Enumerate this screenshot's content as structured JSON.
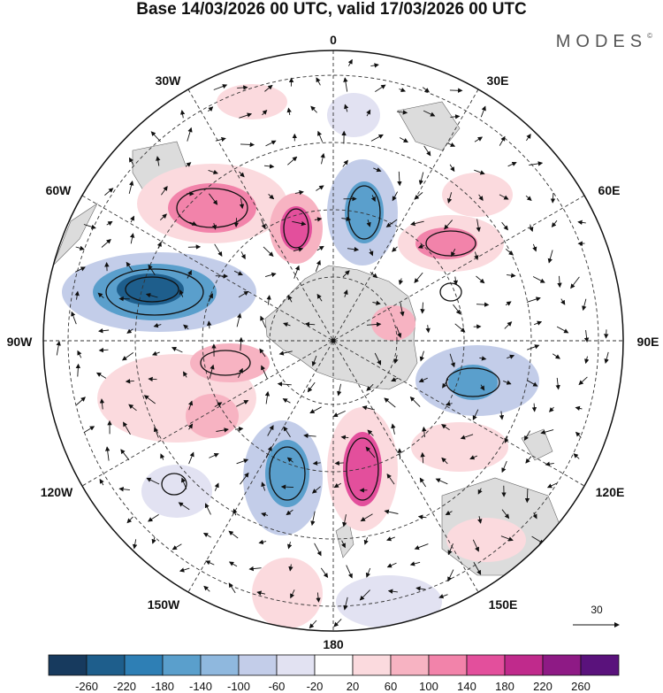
{
  "title": "Base 14/03/2026 00 UTC, valid 17/03/2026 00 UTC",
  "brand": "MODES",
  "brand_mark": "©",
  "longitude_labels": {
    "n0": "0",
    "n30e": "30E",
    "n60e": "60E",
    "n90e": "90E",
    "n120e": "120E",
    "n150e": "150E",
    "n180": "180",
    "n150w": "150W",
    "n120w": "120W",
    "n90w": "90W",
    "n60w": "60W",
    "n30w": "30W"
  },
  "vector_reference": "30",
  "colorbar": {
    "ticks": [
      "-260",
      "-220",
      "-180",
      "-140",
      "-100",
      "-60",
      "-20",
      "20",
      "60",
      "100",
      "140",
      "180",
      "220",
      "260"
    ],
    "colors": [
      "#173a5e",
      "#1e5e8c",
      "#2e7fb5",
      "#5a9fcc",
      "#8fb8de",
      "#c3cde9",
      "#e2e2f2",
      "#ffffff",
      "#fbdade",
      "#f7b3c2",
      "#f283aa",
      "#e34f9c",
      "#c02a8c",
      "#8e1a85",
      "#5a127c"
    ]
  },
  "colors": {
    "ocean": "#ffffff",
    "land": "#d9d9d9",
    "grid": "#333333"
  }
}
